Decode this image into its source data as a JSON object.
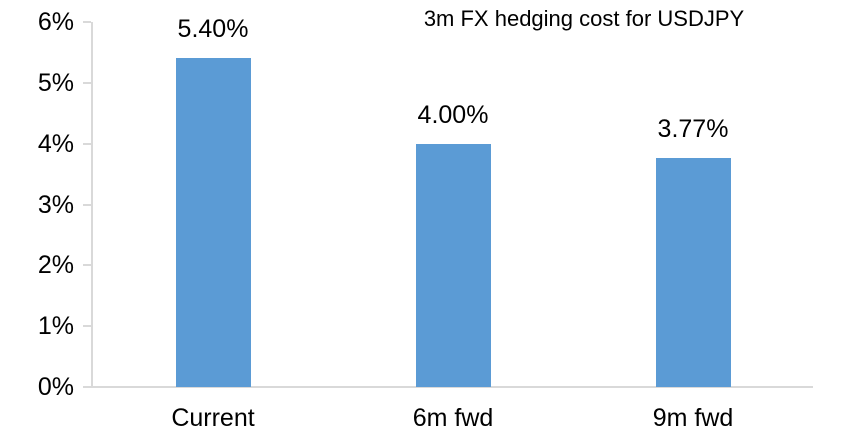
{
  "chart_data": {
    "type": "bar",
    "title": "3m FX hedging cost for USDJPY",
    "categories": [
      "Current",
      "6m fwd",
      "9m fwd"
    ],
    "values": [
      5.4,
      4.0,
      3.77
    ],
    "data_labels": [
      "5.40%",
      "4.00%",
      "3.77%"
    ],
    "y_tick_labels": [
      "0%",
      "1%",
      "2%",
      "3%",
      "4%",
      "5%",
      "6%"
    ],
    "ylim": [
      0,
      6
    ],
    "xlabel": "",
    "ylabel": "",
    "grid": false,
    "legend_position": "none",
    "colors": {
      "bar": "#5B9BD5",
      "axis": "#D9D9D9",
      "text": "#000000",
      "background": "#FFFFFF"
    }
  }
}
